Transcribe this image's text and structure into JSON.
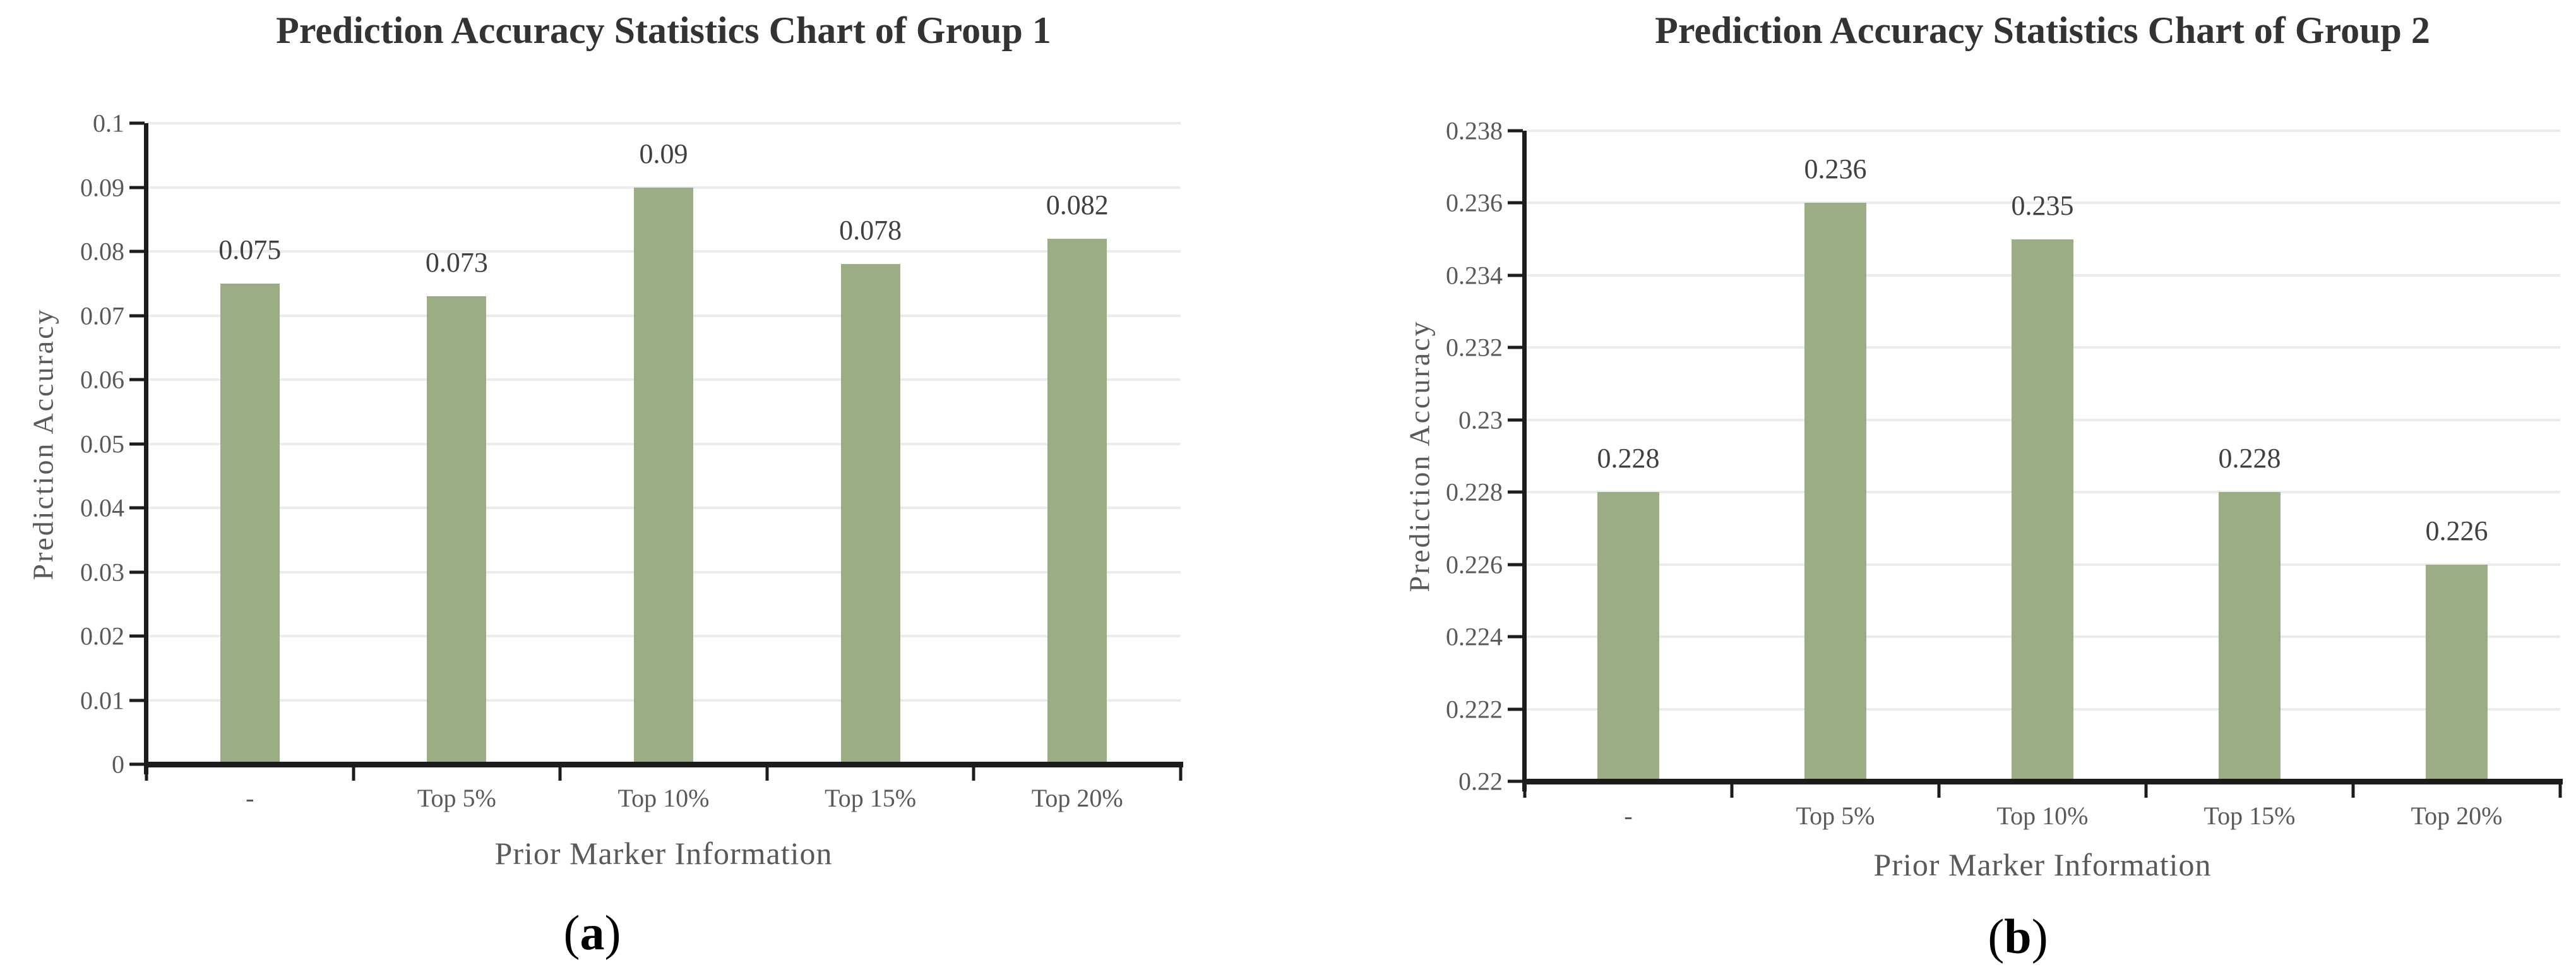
{
  "figure": {
    "background": "#ffffff",
    "bar_color": "#9BAD83",
    "gridline_color": "#ECECEC",
    "axis_color": "#1C1C1C",
    "tick_label_color": "#595959",
    "axis_title_color": "#595959",
    "data_label_color": "#404040",
    "title_color": "#333333"
  },
  "chart_data": [
    {
      "type": "bar",
      "title": "Prediction Accuracy Statistics Chart of Group 1",
      "xlabel": "Prior Marker Information",
      "ylabel": "Prediction Accuracy",
      "categories": [
        "-",
        "Top 5%",
        "Top 10%",
        "Top 15%",
        "Top 20%"
      ],
      "values": [
        0.075,
        0.073,
        0.09,
        0.078,
        0.082
      ],
      "data_labels": [
        "0.075",
        "0.073",
        "0.09",
        "0.078",
        "0.082"
      ],
      "ylim": [
        0,
        0.1
      ],
      "ytick_step": 0.01,
      "ytick_labels": [
        "0.1",
        "0.09",
        "0.08",
        "0.07",
        "0.06",
        "0.05",
        "0.04",
        "0.03",
        "0.02",
        "0.01",
        "0"
      ],
      "grid": true,
      "legend": "none",
      "panel_letter": "a"
    },
    {
      "type": "bar",
      "title": "Prediction Accuracy Statistics Chart of Group 2",
      "xlabel": "Prior Marker Information",
      "ylabel": "Prediction Accuracy",
      "categories": [
        "-",
        "Top 5%",
        "Top 10%",
        "Top 15%",
        "Top 20%"
      ],
      "values": [
        0.228,
        0.236,
        0.235,
        0.228,
        0.226
      ],
      "data_labels": [
        "0.228",
        "0.236",
        "0.235",
        "0.228",
        "0.226"
      ],
      "ylim": [
        0.22,
        0.238
      ],
      "ytick_step": 0.002,
      "ytick_labels": [
        "0.238",
        "0.236",
        "0.234",
        "0.232",
        "0.23",
        "0.228",
        "0.226",
        "0.224",
        "0.222",
        "0.22"
      ],
      "grid": true,
      "legend": "none",
      "panel_letter": "b"
    }
  ]
}
